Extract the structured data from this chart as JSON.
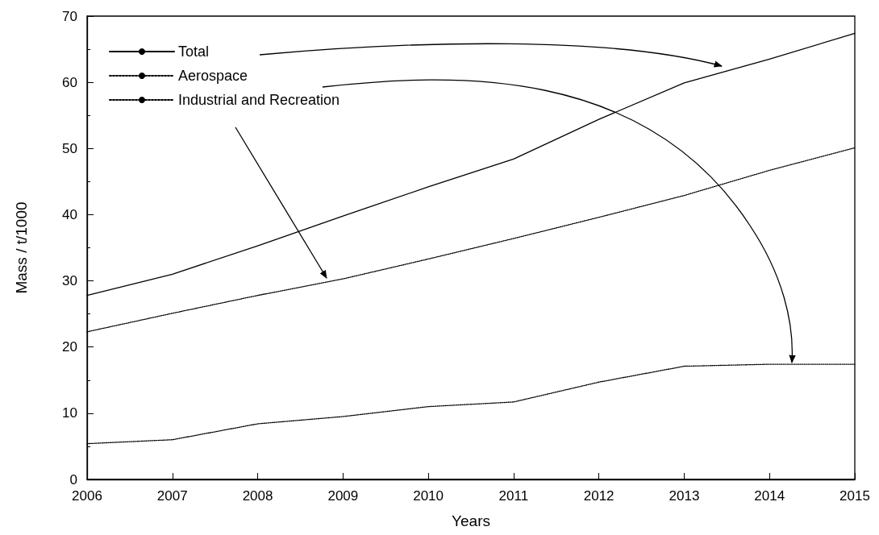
{
  "chart_data": {
    "type": "line",
    "xlabel": "Years",
    "ylabel": "Mass / t/1000",
    "x": [
      2006,
      2007,
      2008,
      2009,
      2010,
      2011,
      2012,
      2013,
      2014,
      2015
    ],
    "series": [
      {
        "name": "Total",
        "color": "#000000",
        "line_style": "solid",
        "values": [
          27.8,
          31.0,
          35.3,
          39.8,
          44.2,
          48.4,
          54.4,
          59.9,
          63.5,
          67.4
        ]
      },
      {
        "name": "Aerospace",
        "color": "#000000",
        "line_style": "dotted",
        "values": [
          5.4,
          6.0,
          8.4,
          9.5,
          11.0,
          11.7,
          14.7,
          17.1,
          17.4,
          17.4
        ]
      },
      {
        "name": "Industrial and Recreation",
        "color": "#000000",
        "line_style": "dotted",
        "values": [
          22.3,
          25.1,
          27.8,
          30.3,
          33.3,
          36.4,
          39.6,
          42.9,
          46.7,
          50.1
        ]
      }
    ],
    "xlim": [
      2006,
      2015
    ],
    "xticks": [
      2006,
      2007,
      2008,
      2009,
      2010,
      2011,
      2012,
      2013,
      2014,
      2015
    ],
    "ylim": [
      0,
      70
    ],
    "yticks": [
      0,
      10,
      20,
      30,
      40,
      50,
      60,
      70
    ],
    "grid": false,
    "legend": "top left",
    "marker": "none"
  }
}
